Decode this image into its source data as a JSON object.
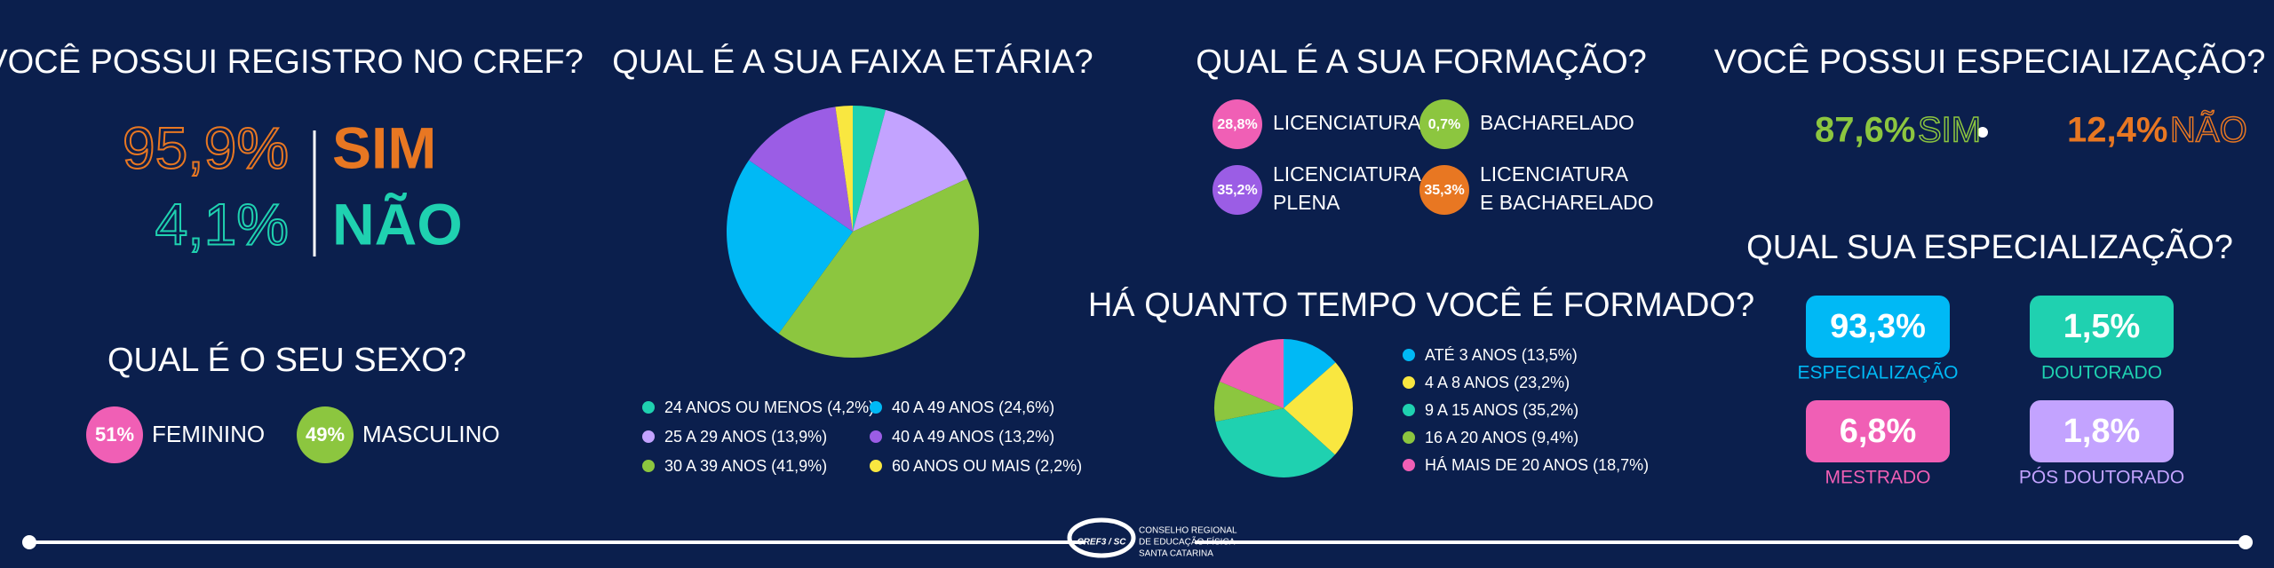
{
  "registro": {
    "title": "VOCÊ POSSUI REGISTRO NO CREF?",
    "items": [
      {
        "percent": "95,9%",
        "label": "SIM"
      },
      {
        "percent": "4,1%",
        "label": "NÃO"
      }
    ]
  },
  "sexo": {
    "title": "QUAL É O SEU SEXO?",
    "items": [
      {
        "percent": "51%",
        "label": "FEMININO"
      },
      {
        "percent": "49%",
        "label": "MASCULINO"
      }
    ]
  },
  "formacao": {
    "title": "QUAL É A SUA FORMAÇÃO?",
    "items": [
      {
        "percent": "28,8%",
        "label": [
          "LICENCIATURA"
        ]
      },
      {
        "percent": "0,7%",
        "label": [
          "BACHARELADO"
        ]
      },
      {
        "percent": "35,2%",
        "label": [
          "LICENCIATURA",
          "PLENA"
        ]
      },
      {
        "percent": "35,3%",
        "label": [
          "LICENCIATURA",
          "E BACHARELADO"
        ]
      }
    ]
  },
  "especializacao": {
    "title": "VOCÊ POSSUI ESPECIALIZAÇÃO?",
    "items": [
      {
        "percent": "87,6%",
        "label": "SIM"
      },
      {
        "percent": "12,4%",
        "label": "NÃO"
      }
    ]
  },
  "tipo_especializacao": {
    "title": "QUAL SUA  ESPECIALIZAÇÃO?",
    "items": [
      {
        "percent": "93,3%",
        "label": "ESPECIALIZAÇÃO"
      },
      {
        "percent": "1,5%",
        "label": "DOUTORADO"
      },
      {
        "percent": "6,8%",
        "label": "MESTRADO"
      },
      {
        "percent": "1,8%",
        "label": "PÓS DOUTORADO"
      }
    ]
  },
  "chart_data": [
    {
      "type": "pie",
      "title": "QUAL É A SUA FAIXA ETÁRIA?",
      "categories": [
        "24 ANOS OU MENOS",
        "25 A 29 ANOS",
        "30 A 39 ANOS",
        "40 A 49 ANOS",
        "40 A 49 ANOS",
        "60 ANOS OU MAIS"
      ],
      "values": [
        4.2,
        13.9,
        41.9,
        24.6,
        13.2,
        2.2
      ],
      "value_labels": [
        "(4,2%)",
        "(13,9%)",
        "(41,9%)",
        "(24,6%)",
        "(13,2%)",
        "(2,2%)"
      ],
      "colors": [
        "#1fd1b0",
        "#c3a3ff",
        "#8cc63f",
        "#00b9f5",
        "#9b5de5",
        "#f9e740"
      ]
    },
    {
      "type": "pie",
      "title": "HÁ QUANTO TEMPO VOCÊ É FORMADO?",
      "categories": [
        "ATÉ 3 ANOS",
        "4 A 8 ANOS",
        "9 A 15 ANOS",
        "16 A 20 ANOS",
        "HÁ MAIS DE 20 ANOS"
      ],
      "values": [
        13.5,
        23.2,
        35.2,
        9.4,
        18.7
      ],
      "value_labels": [
        "(13,5%)",
        "(23,2%)",
        "(35,2%)",
        "(9,4%)",
        "(18,7%)"
      ],
      "colors": [
        "#00b9f5",
        "#f9e740",
        "#1fd1b0",
        "#8cc63f",
        "#f05fb5"
      ]
    }
  ],
  "footer": {
    "logo": "CREF3 / SC",
    "lines": [
      "CONSELHO REGIONAL",
      "DE EDUCAÇÃO FÍSICA",
      "SANTA CATARINA"
    ]
  }
}
